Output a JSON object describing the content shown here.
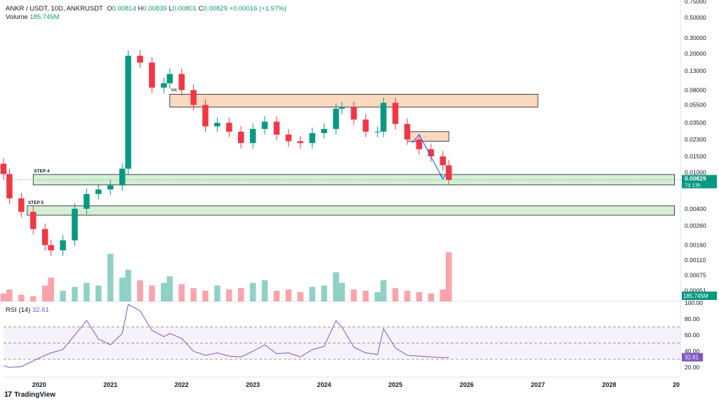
{
  "header": {
    "symbol": "ANKR / USDT, 10D, ANKRUSDT",
    "o_label": "O",
    "o": "0.00814",
    "h_label": "H",
    "h": "0.00839",
    "l_label": "L",
    "l": "0.00801",
    "c_label": "C",
    "c": "0.00829",
    "change": "+0.00016 (+1.97%)",
    "volume_label": "Volume",
    "volume": "185.745M"
  },
  "rsi": {
    "label": "RSI (14)",
    "value": "32.61",
    "levels": [
      20,
      40,
      60,
      80,
      100
    ],
    "upper": 70,
    "lower": 30,
    "mid": 50
  },
  "price_axis": {
    "ticks": [
      "0.75000",
      "0.50000",
      "0.30000",
      "0.20000",
      "0.13000",
      "0.08000",
      "0.05500",
      "0.03500",
      "0.02300",
      "0.01500",
      "0.01000",
      "0.00400",
      "0.00260",
      "0.00160",
      "0.00110",
      "0.00075",
      "0.00051"
    ],
    "last_price": "0.00829",
    "countdown": "7d 13h",
    "volume_badge": "185.745M",
    "rsi_badge": "32.61"
  },
  "time_axis": {
    "ticks": [
      "2020",
      "2021",
      "2022",
      "2023",
      "2024",
      "2025",
      "2026",
      "2027",
      "2028",
      "20"
    ]
  },
  "annotations": {
    "step4": "STEP 4",
    "step5": "STEP 5",
    "mk": "MK"
  },
  "branding": {
    "name": "TradingView",
    "mark": "17"
  },
  "colors": {
    "up": "#089981",
    "down": "#f23645",
    "rsi": "#7e57c2",
    "resistance": "#fbd9c0",
    "support": "#d5efd5",
    "arrow": "#2962ff",
    "badge": "#089981"
  },
  "chart_data": {
    "type": "candlestick",
    "scale": "log",
    "ylim": [
      0.0004,
      0.75
    ],
    "xlim": [
      "2019-07-01",
      "2029-01-01"
    ],
    "series": [
      {
        "name": "ANKR / USDT",
        "x": [
          "2019-07",
          "2019-08",
          "2019-10",
          "2019-12",
          "2020-02",
          "2020-03",
          "2020-05",
          "2020-07",
          "2020-09",
          "2020-11",
          "2021-01",
          "2021-03",
          "2021-04",
          "2021-06",
          "2021-08",
          "2021-10",
          "2021-11",
          "2022-01",
          "2022-03",
          "2022-05",
          "2022-07",
          "2022-09",
          "2022-11",
          "2023-01",
          "2023-03",
          "2023-05",
          "2023-07",
          "2023-09",
          "2023-11",
          "2024-01",
          "2024-03",
          "2024-04",
          "2024-06",
          "2024-08",
          "2024-10",
          "2024-11",
          "2025-01",
          "2025-03",
          "2025-05",
          "2025-07",
          "2025-09",
          "2025-10"
        ],
        "values": [
          0.0096,
          0.0052,
          0.0037,
          0.0024,
          0.0016,
          0.0014,
          0.0018,
          0.004,
          0.0058,
          0.0065,
          0.0072,
          0.011,
          0.19,
          0.16,
          0.085,
          0.095,
          0.12,
          0.08,
          0.055,
          0.032,
          0.035,
          0.028,
          0.021,
          0.03,
          0.036,
          0.026,
          0.022,
          0.021,
          0.027,
          0.03,
          0.05,
          0.052,
          0.038,
          0.028,
          0.028,
          0.058,
          0.034,
          0.023,
          0.018,
          0.015,
          0.012,
          0.00829
        ]
      }
    ],
    "volume_million": [
      30,
      45,
      25,
      20,
      60,
      90,
      40,
      55,
      70,
      60,
      180,
      90,
      120,
      80,
      60,
      70,
      95,
      65,
      50,
      40,
      60,
      45,
      50,
      70,
      80,
      40,
      45,
      35,
      55,
      60,
      110,
      70,
      45,
      40,
      35,
      80,
      50,
      40,
      35,
      30,
      45,
      185.745
    ],
    "rsi_values": [
      22,
      20,
      21,
      28,
      35,
      38,
      42,
      60,
      78,
      55,
      48,
      62,
      98,
      90,
      66,
      58,
      62,
      56,
      40,
      35,
      38,
      34,
      33,
      40,
      48,
      37,
      38,
      33,
      42,
      46,
      78,
      70,
      45,
      38,
      36,
      68,
      44,
      35,
      34,
      33,
      32,
      32.61
    ],
    "zones": [
      {
        "kind": "resistance",
        "from": "2021-11",
        "to": "2027-01",
        "low": 0.052,
        "high": 0.072
      },
      {
        "kind": "resistance",
        "from": "2025-03",
        "to": "2025-10",
        "low": 0.022,
        "high": 0.028
      },
      {
        "kind": "support",
        "label": "STEP 4",
        "from": "2019-12",
        "to": "2028-12",
        "low": 0.0073,
        "high": 0.0095
      },
      {
        "kind": "support",
        "label": "STEP 5",
        "from": "2019-11",
        "to": "2028-12",
        "low": 0.0034,
        "high": 0.0043
      }
    ]
  }
}
